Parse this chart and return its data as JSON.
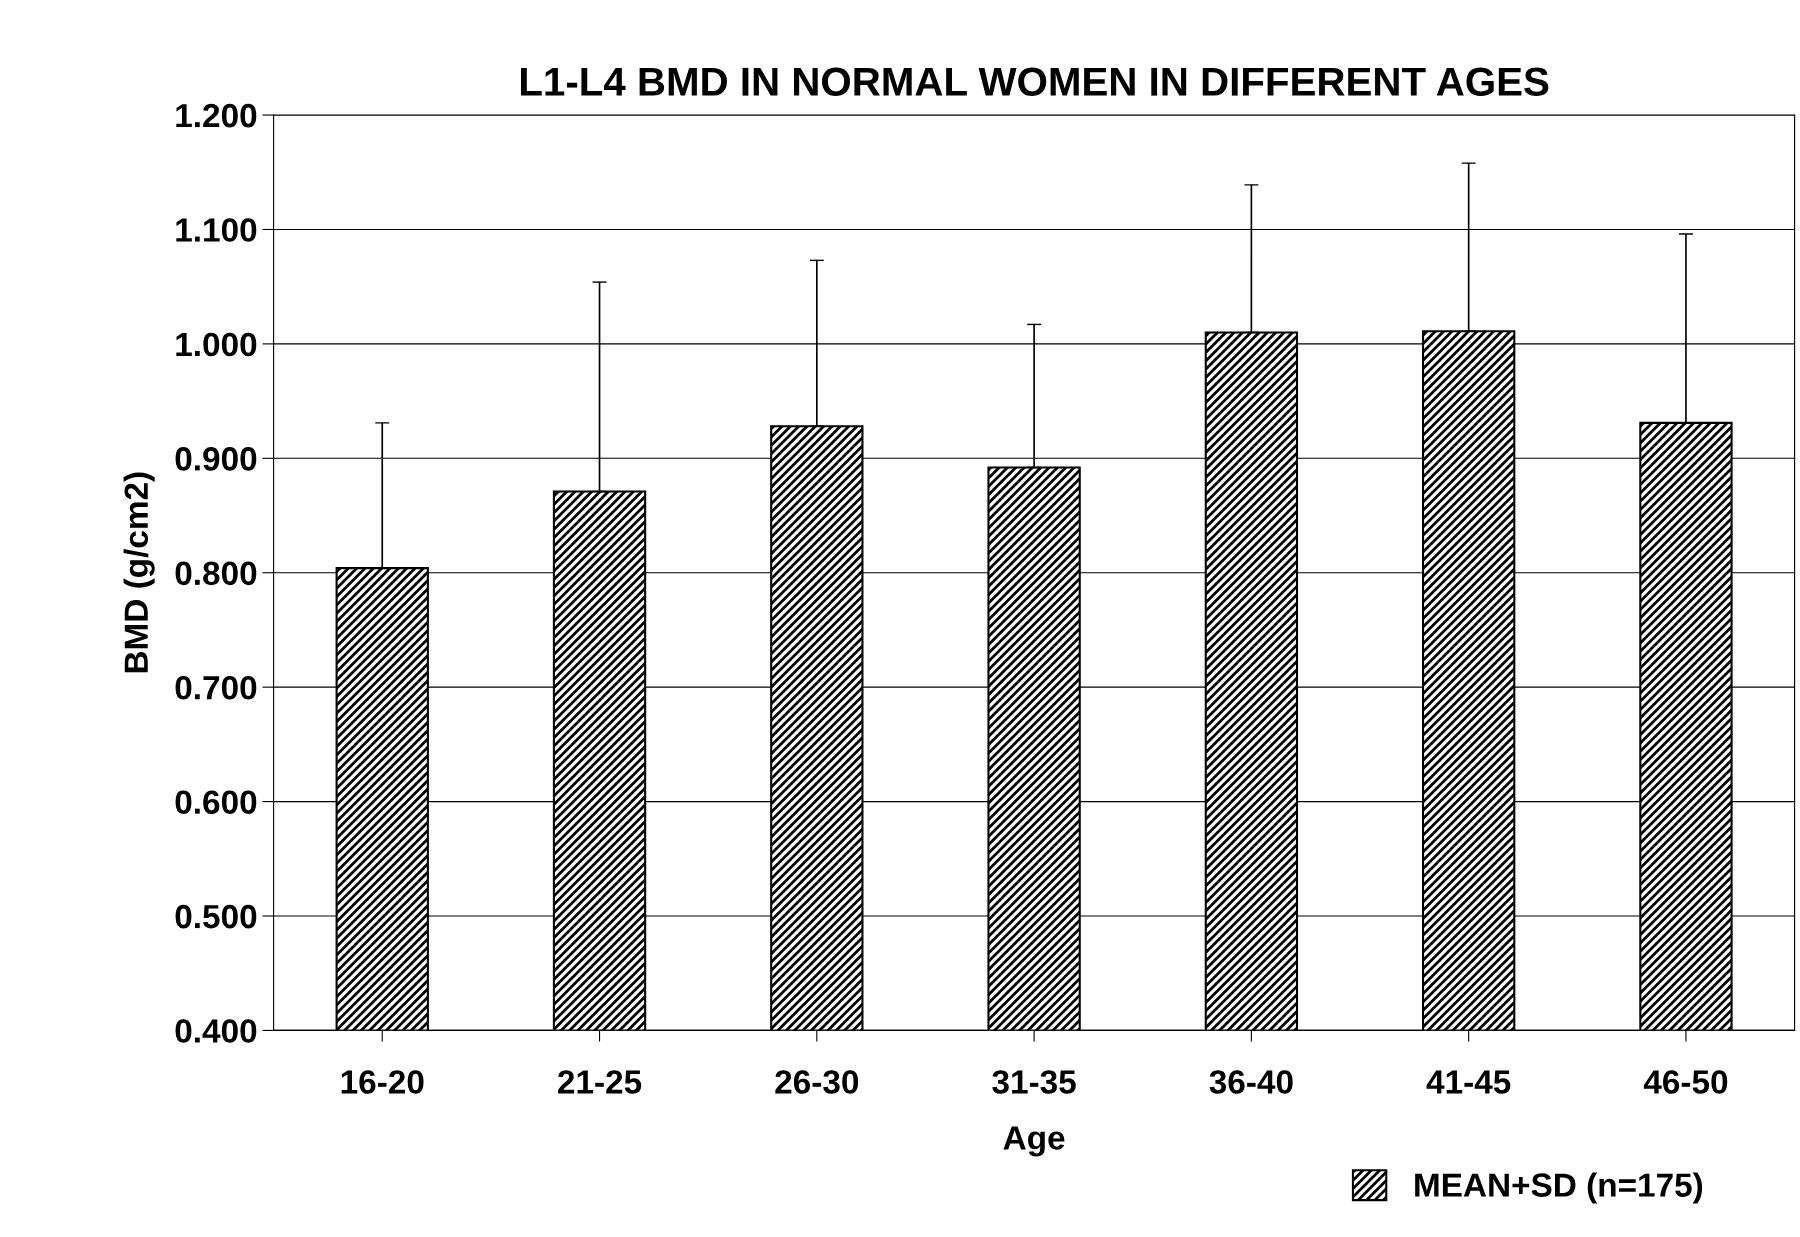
{
  "chart_data": {
    "type": "bar",
    "title": "L1-L4 BMD IN NORMAL WOMEN IN DIFFERENT AGES",
    "xlabel": "Age",
    "ylabel": "BMD (g/cm2)",
    "categories": [
      "16-20",
      "21-25",
      "26-30",
      "31-35",
      "36-40",
      "41-45",
      "46-50"
    ],
    "series": [
      {
        "name": "MEAN+SD (n=175)",
        "color": "#000000",
        "values": [
          0.804,
          0.871,
          0.928,
          0.892,
          1.01,
          1.011,
          0.931
        ],
        "errors": [
          [
            0.804,
            0.931
          ],
          [
            0.871,
            1.054
          ],
          [
            0.928,
            1.073
          ],
          [
            0.892,
            1.017
          ],
          [
            1.01,
            1.139
          ],
          [
            1.011,
            1.158
          ],
          [
            0.931,
            1.096
          ]
        ]
      }
    ],
    "ylim": [
      0.4,
      1.2
    ],
    "yticks": [
      {
        "value": 0.4,
        "label": "0.400"
      },
      {
        "value": 0.5,
        "label": "0.500"
      },
      {
        "value": 0.6,
        "label": "0.600"
      },
      {
        "value": 0.7,
        "label": "0.700"
      },
      {
        "value": 0.8,
        "label": "0.800"
      },
      {
        "value": 0.9,
        "label": "0.900"
      },
      {
        "value": 1.0,
        "label": "1.000"
      },
      {
        "value": 1.1,
        "label": "1.100"
      },
      {
        "value": 1.2,
        "label": "1.200"
      }
    ],
    "grid": "y",
    "legend": "bottom right"
  }
}
